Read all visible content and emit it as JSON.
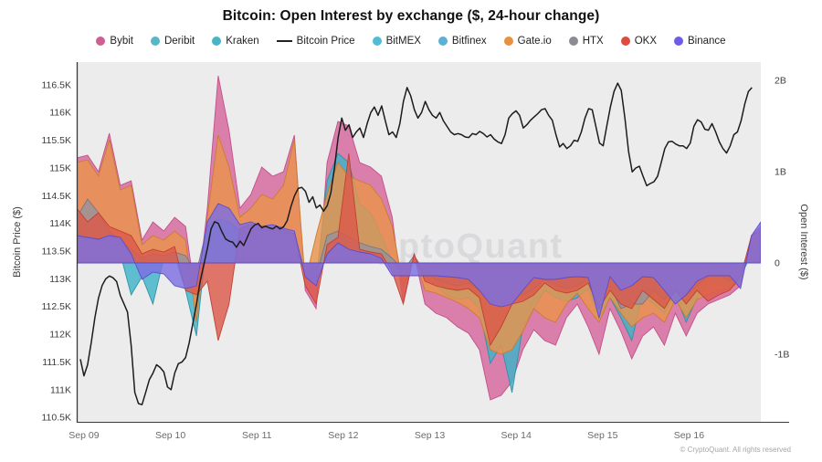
{
  "title": "Bitcoin: Open Interest by exchange ($, 24-hour change)",
  "watermark": "CryptoQuant",
  "copyright": "© CryptoQuant. All rights reserved",
  "colors": {
    "plot_background": "#ececec",
    "axis_line": "#3a3a3a",
    "tick_text": "#3c3c3c",
    "x_tick_text": "#6b6b6b",
    "watermark_text": "#d4d4d8"
  },
  "legend": {
    "items": [
      {
        "label": "Bybit",
        "color": "#cf5f93",
        "marker": "dot"
      },
      {
        "label": "Deribit",
        "color": "#56b7c8",
        "marker": "dot"
      },
      {
        "label": "Kraken",
        "color": "#48b4c8",
        "marker": "dot"
      },
      {
        "label": "Bitcoin Price",
        "color": "#222222",
        "marker": "line"
      },
      {
        "label": "BitMEX",
        "color": "#50bdd2",
        "marker": "dot"
      },
      {
        "label": "Bitfinex",
        "color": "#5cb0d6",
        "marker": "dot"
      },
      {
        "label": "Gate.io",
        "color": "#e8923f",
        "marker": "dot"
      },
      {
        "label": "HTX",
        "color": "#8e8b94",
        "marker": "dot"
      },
      {
        "label": "OKX",
        "color": "#e04b40",
        "marker": "dot"
      },
      {
        "label": "Binance",
        "color": "#6f5ce6",
        "marker": "dot"
      }
    ]
  },
  "chart_data": {
    "type": "area+line",
    "title": "Bitcoin: Open Interest by exchange ($, 24-hour change)",
    "x_axis": {
      "tick_labels": [
        "Sep 09",
        "Sep 10",
        "Sep 11",
        "Sep 12",
        "Sep 13",
        "Sep 14",
        "Sep 15",
        "Sep 16"
      ],
      "tick_days": [
        9,
        10,
        11,
        12,
        13,
        14,
        15,
        16
      ],
      "range_days": [
        8.916,
        16.83
      ]
    },
    "left_axis": {
      "label": "Bitcoin Price ($)",
      "tick_labels": [
        "116.5K",
        "116K",
        "115.5K",
        "115K",
        "114.5K",
        "114K",
        "113.5K",
        "113K",
        "112.5K",
        "112K",
        "111.5K",
        "111K",
        "110.5K"
      ],
      "tick_values": [
        116.5,
        116,
        115.5,
        115,
        114.5,
        114,
        113.5,
        113,
        112.5,
        112,
        111.5,
        111,
        110.5
      ],
      "range": [
        110.42,
        116.91
      ]
    },
    "right_axis": {
      "label": "Open Interest ($)",
      "tick_labels": [
        "2B",
        "1B",
        "0",
        "-1B"
      ],
      "tick_values": [
        2,
        1,
        0,
        -1
      ],
      "range": [
        -1.74,
        2.2
      ]
    },
    "price_line": {
      "name": "Bitcoin Price",
      "color": "#1c1c1e",
      "unit": "K_USD",
      "start_day": 8.958,
      "step_day": 0.042,
      "values": [
        111.55,
        111.25,
        111.45,
        111.85,
        112.3,
        112.65,
        112.88,
        113.0,
        113.05,
        113.02,
        112.95,
        112.7,
        112.55,
        112.4,
        111.8,
        110.95,
        110.75,
        110.73,
        110.95,
        111.18,
        111.3,
        111.45,
        111.4,
        111.32,
        111.05,
        111.0,
        111.3,
        111.47,
        111.5,
        111.58,
        111.85,
        112.2,
        112.55,
        112.95,
        113.25,
        113.55,
        113.9,
        114.03,
        114.0,
        113.85,
        113.72,
        113.68,
        113.66,
        113.57,
        113.68,
        113.6,
        113.75,
        113.9,
        113.97,
        114.0,
        113.92,
        113.95,
        113.92,
        113.9,
        113.95,
        113.9,
        113.94,
        114.05,
        114.3,
        114.5,
        114.63,
        114.65,
        114.58,
        114.38,
        114.48,
        114.28,
        114.33,
        114.22,
        114.32,
        114.55,
        115.0,
        115.55,
        115.9,
        115.68,
        115.78,
        115.55,
        115.65,
        115.72,
        115.55,
        115.8,
        116.0,
        116.1,
        115.95,
        116.12,
        115.85,
        115.6,
        115.65,
        115.55,
        115.8,
        116.2,
        116.45,
        116.3,
        116.05,
        115.9,
        116.0,
        116.2,
        116.05,
        115.95,
        115.9,
        116.0,
        115.85,
        115.75,
        115.65,
        115.6,
        115.62,
        115.6,
        115.56,
        115.55,
        115.62,
        115.6,
        115.66,
        115.62,
        115.56,
        115.6,
        115.52,
        115.47,
        115.44,
        115.6,
        115.9,
        115.98,
        116.03,
        115.95,
        115.72,
        115.78,
        115.86,
        115.92,
        115.98,
        116.05,
        116.07,
        115.95,
        115.86,
        115.6,
        115.38,
        115.44,
        115.35,
        115.4,
        115.5,
        115.48,
        115.65,
        115.9,
        116.07,
        116.05,
        115.75,
        115.45,
        115.4,
        115.75,
        116.1,
        116.38,
        116.53,
        116.4,
        115.9,
        115.3,
        114.93,
        115.0,
        115.03,
        114.85,
        114.68,
        114.72,
        114.75,
        114.85,
        115.1,
        115.35,
        115.47,
        115.48,
        115.43,
        115.4,
        115.4,
        115.35,
        115.45,
        115.75,
        115.87,
        115.83,
        115.7,
        115.68,
        115.8,
        115.65,
        115.47,
        115.35,
        115.27,
        115.4,
        115.6,
        115.65,
        115.85,
        116.15,
        116.38,
        116.45
      ]
    },
    "oi_areas": {
      "unit": "B_USD",
      "start_day": 8.916,
      "step_day": 0.1259,
      "series": [
        {
          "name": "Bybit",
          "fill": "#d5679c",
          "stroke": "#c14b82",
          "values": [
            1.15,
            1.18,
            1.0,
            1.42,
            0.85,
            0.9,
            0.25,
            0.45,
            0.35,
            0.5,
            0.4,
            -0.45,
            0.6,
            2.05,
            1.45,
            0.6,
            0.75,
            1.05,
            0.95,
            1.0,
            1.4,
            -0.3,
            -0.5,
            1.1,
            1.55,
            1.5,
            1.1,
            1.05,
            0.95,
            0.5,
            -0.45,
            0.1,
            -0.45,
            -0.55,
            -0.6,
            -0.7,
            -0.77,
            -0.95,
            -1.5,
            -1.45,
            -1.3,
            -0.95,
            -0.73,
            -0.85,
            -0.9,
            -0.6,
            -0.45,
            -0.7,
            -1.0,
            -0.5,
            -0.75,
            -1.05,
            -0.8,
            -0.7,
            -0.9,
            -0.55,
            -0.8,
            -0.55,
            -0.45,
            -0.4,
            -0.35,
            -0.25,
            0.3,
            0.4
          ]
        },
        {
          "name": "Deribit",
          "fill": "#53b7cb",
          "stroke": "#2d96ab",
          "values": [
            0.06,
            0.06,
            0.05,
            0.1,
            0.05,
            0.04,
            0.02,
            0.03,
            0.02,
            0.04,
            0.03,
            -0.15,
            0.1,
            0.2,
            0.18,
            0.12,
            0.14,
            0.13,
            0.12,
            0.11,
            0.1,
            -0.06,
            -0.1,
            0.15,
            0.2,
            0.15,
            0.1,
            0.08,
            0.05,
            0.01,
            -0.08,
            0.02,
            -0.05,
            -0.12,
            -0.15,
            -0.18,
            -0.16,
            -0.22,
            -0.35,
            -0.4,
            -0.3,
            -0.25,
            -0.2,
            -0.12,
            -0.16,
            -0.18,
            -0.16,
            -0.12,
            -0.25,
            -0.16,
            -0.25,
            -0.25,
            -0.15,
            -0.2,
            -0.22,
            -0.15,
            -0.28,
            -0.16,
            -0.08,
            -0.06,
            -0.04,
            -0.05,
            0.06,
            0.08
          ]
        },
        {
          "name": "Kraken",
          "fill": "#3eb3c8",
          "stroke": "#2a90a4",
          "values": [
            0.12,
            0.1,
            0.08,
            0.15,
            0.1,
            -0.35,
            -0.15,
            -0.45,
            0.05,
            0.08,
            -0.3,
            -0.8,
            0.3,
            0.45,
            0.4,
            0.25,
            0.3,
            0.28,
            0.26,
            0.25,
            0.22,
            -0.12,
            -0.2,
            0.9,
            1.2,
            1.1,
            0.65,
            0.55,
            0.3,
            0.02,
            -0.15,
            0.04,
            -0.15,
            -0.25,
            -0.35,
            -0.4,
            -0.38,
            -0.5,
            -1.1,
            -0.9,
            -1.42,
            -0.7,
            -0.5,
            -0.3,
            -0.38,
            -0.42,
            -0.38,
            -0.28,
            -0.6,
            -0.38,
            -0.6,
            -0.85,
            -0.35,
            -0.45,
            -0.55,
            -0.35,
            -0.65,
            -0.38,
            -0.2,
            -0.25,
            -0.28,
            -0.15,
            0.1,
            0.15
          ]
        },
        {
          "name": "BitMEX",
          "fill": "#5cc3d6",
          "stroke": "#36a2b8",
          "values": [
            0.03,
            0.03,
            0.03,
            0.06,
            0.03,
            0.02,
            0.01,
            0.01,
            0.01,
            0.02,
            0.01,
            -0.08,
            0.06,
            0.1,
            0.09,
            0.06,
            0.07,
            0.06,
            0.06,
            0.05,
            0.05,
            -0.03,
            -0.05,
            0.08,
            0.1,
            0.08,
            0.05,
            0.04,
            0.03,
            0.01,
            -0.04,
            0.01,
            -0.02,
            -0.06,
            -0.08,
            -0.09,
            -0.08,
            -0.11,
            -0.18,
            -0.2,
            -0.15,
            -0.12,
            -0.1,
            -0.06,
            -0.08,
            -0.09,
            -0.08,
            -0.06,
            -0.12,
            -0.08,
            -0.12,
            -0.12,
            -0.08,
            -0.1,
            -0.11,
            -0.08,
            -0.14,
            -0.08,
            -0.04,
            -0.03,
            -0.02,
            -0.03,
            0.04,
            0.05
          ]
        },
        {
          "name": "Bitfinex",
          "fill": "#63b3dc",
          "stroke": "#3c92c2",
          "values": [
            0.05,
            0.04,
            0.04,
            0.08,
            0.04,
            0.03,
            0.02,
            0.02,
            0.02,
            0.03,
            0.02,
            -0.3,
            0.08,
            0.15,
            0.13,
            0.09,
            0.1,
            0.1,
            0.09,
            0.08,
            0.07,
            -0.04,
            -0.07,
            0.11,
            0.15,
            0.11,
            0.08,
            0.06,
            0.04,
            0.01,
            -0.06,
            0.02,
            -0.03,
            -0.09,
            -0.11,
            -0.13,
            -0.12,
            -0.16,
            -0.26,
            -0.3,
            -0.22,
            -0.18,
            -0.15,
            -0.09,
            -0.12,
            -0.13,
            -0.12,
            -0.09,
            -0.18,
            -0.12,
            -0.18,
            -0.18,
            -0.11,
            -0.15,
            -0.16,
            -0.11,
            -0.21,
            -0.12,
            -0.06,
            -0.05,
            -0.03,
            -0.04,
            0.05,
            0.06
          ]
        },
        {
          "name": "Gate.io",
          "fill": "#e9944c",
          "stroke": "#c97a2c",
          "values": [
            1.1,
            1.13,
            0.95,
            1.35,
            0.8,
            0.85,
            0.2,
            0.3,
            0.25,
            0.35,
            0.25,
            -0.65,
            0.5,
            1.4,
            1.05,
            0.5,
            0.6,
            0.75,
            0.7,
            0.85,
            1.35,
            -0.2,
            0.3,
            0.75,
            1.1,
            0.95,
            0.9,
            0.85,
            0.7,
            0.4,
            -0.25,
            0.08,
            -0.3,
            -0.33,
            -0.38,
            -0.43,
            -0.5,
            -0.6,
            -0.95,
            -1.0,
            -0.95,
            -0.75,
            -0.5,
            -0.6,
            -0.65,
            -0.45,
            -0.33,
            -0.5,
            -0.65,
            -0.38,
            -0.55,
            -0.7,
            -0.6,
            -0.55,
            -0.65,
            -0.4,
            -0.6,
            -0.4,
            -0.35,
            -0.3,
            -0.28,
            -0.2,
            0.25,
            0.3
          ]
        },
        {
          "name": "HTX",
          "fill": "#97939c",
          "stroke": "#76727c",
          "values": [
            0.5,
            0.7,
            0.55,
            0.35,
            0.25,
            0.15,
            0.06,
            0.1,
            0.08,
            0.12,
            0.08,
            -0.1,
            0.4,
            0.48,
            0.45,
            0.35,
            0.38,
            0.36,
            0.35,
            0.33,
            0.3,
            -0.1,
            -0.15,
            0.3,
            0.35,
            0.28,
            0.22,
            0.18,
            0.15,
            0.05,
            -0.08,
            0.08,
            -0.1,
            -0.18,
            -0.22,
            -0.25,
            -0.22,
            -0.3,
            -0.4,
            -0.45,
            -0.35,
            -0.35,
            -0.28,
            -0.18,
            -0.25,
            -0.28,
            -0.25,
            -0.18,
            -0.35,
            -0.25,
            -0.5,
            -0.45,
            -0.45,
            -0.3,
            -0.4,
            -0.25,
            -0.35,
            -0.25,
            -0.15,
            -0.12,
            -0.2,
            -0.1,
            0.15,
            0.18
          ]
        },
        {
          "name": "OKX",
          "fill": "#dc5a4a",
          "stroke": "#bf3d31",
          "values": [
            0.6,
            0.45,
            0.55,
            0.4,
            0.35,
            0.3,
            0.1,
            0.15,
            0.12,
            0.18,
            -0.3,
            -0.35,
            -0.2,
            -0.85,
            -0.45,
            0.38,
            0.42,
            0.4,
            0.38,
            0.36,
            0.32,
            -0.25,
            -0.45,
            0.2,
            0.28,
            1.2,
            0.15,
            0.12,
            0.1,
            -0.1,
            -0.45,
            0.1,
            -0.2,
            -0.25,
            -0.28,
            -0.3,
            -0.28,
            -0.38,
            -0.9,
            -0.7,
            -0.45,
            -0.42,
            -0.35,
            -0.22,
            -0.3,
            -0.33,
            -0.3,
            -0.22,
            -0.5,
            -0.3,
            -0.45,
            -0.5,
            -0.3,
            -0.4,
            -0.5,
            -0.3,
            -0.45,
            -0.3,
            -0.42,
            -0.35,
            -0.3,
            -0.15,
            0.3,
            0.35
          ]
        },
        {
          "name": "Binance",
          "fill": "#7c6fe0",
          "stroke": "#5a49cf",
          "values": [
            0.3,
            0.28,
            0.26,
            0.3,
            0.28,
            0.1,
            -0.18,
            -0.1,
            -0.12,
            -0.25,
            -0.28,
            -0.25,
            0.45,
            0.65,
            0.6,
            0.42,
            0.45,
            0.4,
            0.42,
            0.38,
            0.35,
            -0.15,
            -0.25,
            0.1,
            0.22,
            0.15,
            0.12,
            0.1,
            0.05,
            -0.14,
            -0.14,
            -0.14,
            -0.14,
            -0.14,
            -0.15,
            -0.16,
            -0.18,
            -0.3,
            -0.45,
            -0.48,
            -0.45,
            -0.3,
            -0.16,
            -0.18,
            -0.18,
            -0.16,
            -0.15,
            -0.16,
            -0.6,
            -0.15,
            -0.3,
            -0.25,
            -0.15,
            -0.16,
            -0.3,
            -0.45,
            -0.35,
            -0.2,
            -0.14,
            -0.14,
            -0.14,
            -0.28,
            0.3,
            0.45
          ]
        }
      ]
    }
  }
}
